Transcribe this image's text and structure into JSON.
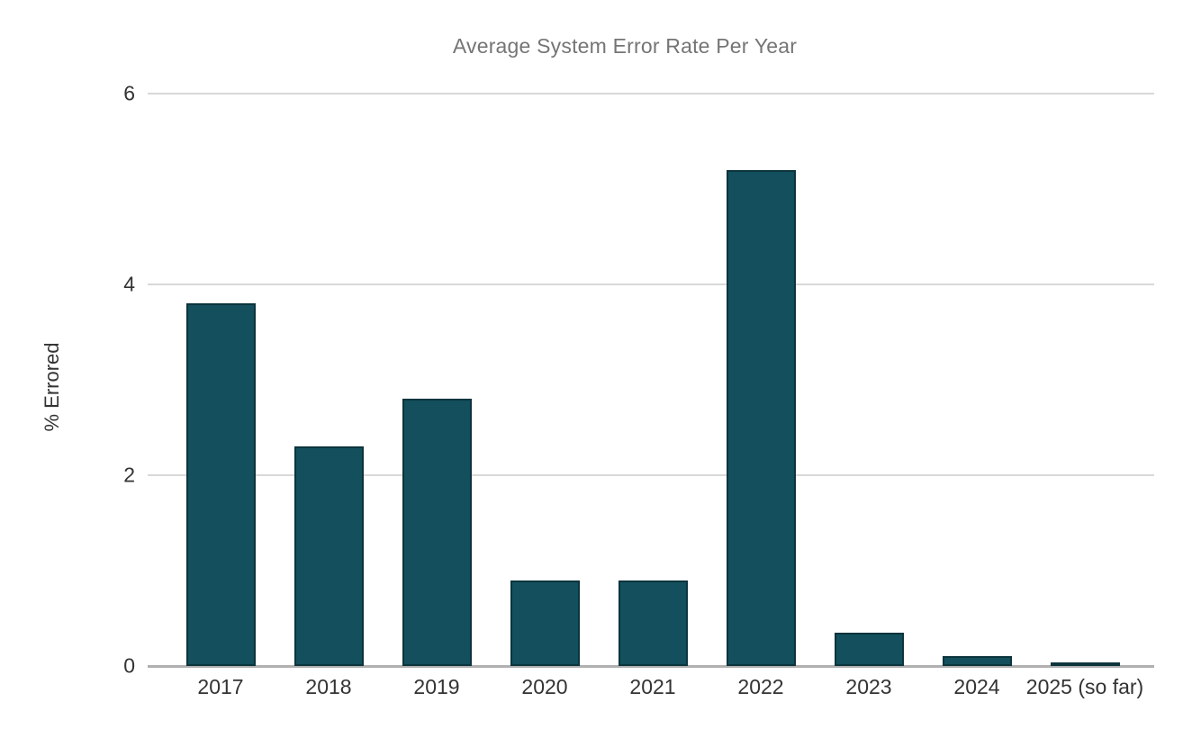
{
  "chart_data": {
    "type": "bar",
    "title": "Average System Error Rate Per Year",
    "xlabel": "",
    "ylabel": "% Errored",
    "categories": [
      "2017",
      "2018",
      "2019",
      "2020",
      "2021",
      "2022",
      "2023",
      "2024",
      "2025 (so far)"
    ],
    "values": [
      3.8,
      2.3,
      2.8,
      0.9,
      0.9,
      5.2,
      0.35,
      0.1,
      0.03
    ],
    "ylim": [
      0,
      6
    ],
    "yticks": [
      0,
      2,
      4,
      6
    ],
    "grid": true,
    "legend": "none",
    "series_name": "% Errored",
    "colors": {
      "bar_fill": "#134f5c",
      "bar_border": "#0c343d",
      "gridline": "#d9d9d9",
      "axis_line": "#b0b0b0",
      "title_text": "#757575",
      "tick_text": "#333333",
      "axis_title_text": "#333333",
      "background": "#ffffff"
    }
  }
}
